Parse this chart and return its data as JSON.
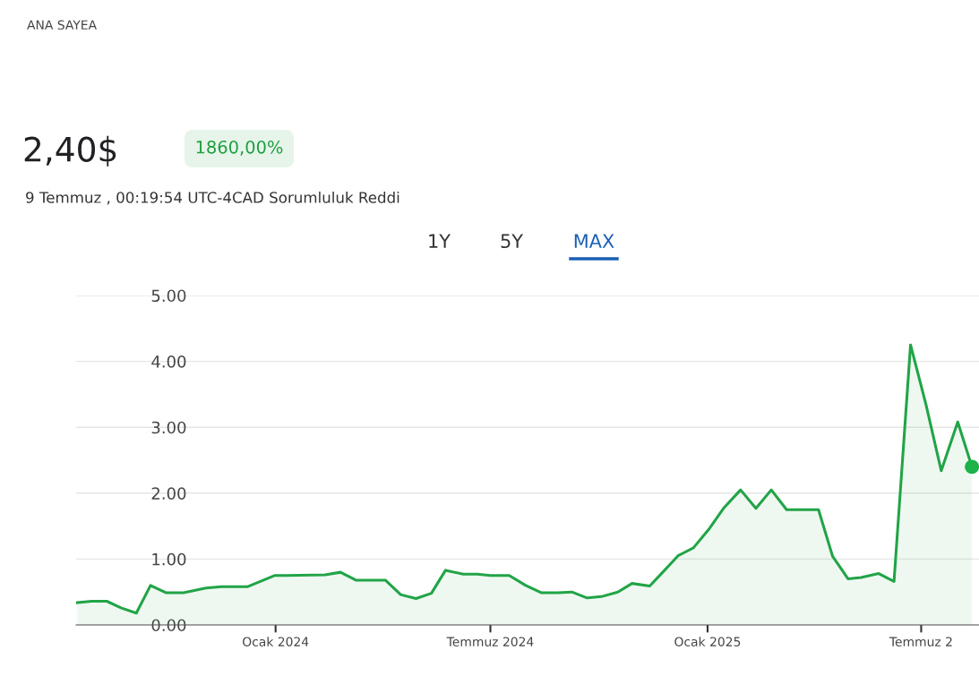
{
  "chart_data": {
    "type": "area",
    "subtitle": "9 Temmuz , 00:19:54 UTC-4CAD Sorumluluk Reddi",
    "annotations": [
      "ANA SAYEA",
      "2,40$",
      "1860,00%",
      "1Y",
      "5Y",
      "MAX"
    ],
    "xlim": [
      "2023-07-16",
      "2025-08-19"
    ],
    "xticks": [
      {
        "value": "2024-01-01",
        "label": "Ocak 2024"
      },
      {
        "value": "2024-07-01",
        "label": "Temmuz 2024"
      },
      {
        "value": "2025-01-01",
        "label": "Ocak 2025"
      },
      {
        "value": "2025-07-01",
        "label": "Temmuz 2"
      }
    ],
    "ylim": [
      0,
      5
    ],
    "yticks": [
      {
        "value": 0,
        "label": "0.00"
      },
      {
        "value": 1,
        "label": "1.00"
      },
      {
        "value": 2,
        "label": "2.00"
      },
      {
        "value": 3,
        "label": "3.00"
      },
      {
        "value": 4,
        "label": "4.00"
      },
      {
        "value": 5,
        "label": "5.00"
      }
    ],
    "grid": "y",
    "legend": false,
    "series": [
      {
        "color": "#22a447",
        "x": [
          "2023-07-17",
          "2023-07-29",
          "2023-08-11",
          "2023-08-23",
          "2023-09-05",
          "2023-09-17",
          "2023-09-30",
          "2023-10-15",
          "2023-11-03",
          "2023-11-16",
          "2023-12-08",
          "2023-12-31",
          "2024-01-10",
          "2024-02-12",
          "2024-02-25",
          "2024-03-09",
          "2024-04-03",
          "2024-04-16",
          "2024-04-29",
          "2024-05-12",
          "2024-05-24",
          "2024-06-08",
          "2024-06-20",
          "2024-07-01",
          "2024-07-17",
          "2024-07-31",
          "2024-08-13",
          "2024-08-27",
          "2024-09-08",
          "2024-09-21",
          "2024-10-03",
          "2024-10-17",
          "2024-10-29",
          "2024-11-13",
          "2024-11-24",
          "2024-12-07",
          "2024-12-20",
          "2025-01-02",
          "2025-01-15",
          "2025-01-29",
          "2025-02-11",
          "2025-02-24",
          "2025-03-09",
          "2025-04-05",
          "2025-04-17",
          "2025-04-30",
          "2025-05-11",
          "2025-05-26",
          "2025-06-08",
          "2025-06-22",
          "2025-07-05",
          "2025-07-18",
          "2025-08-01",
          "2025-08-13"
        ],
        "values": [
          0.34,
          0.36,
          0.36,
          0.26,
          0.18,
          0.6,
          0.49,
          0.49,
          0.56,
          0.58,
          0.58,
          0.75,
          0.75,
          0.76,
          0.8,
          0.68,
          0.68,
          0.46,
          0.4,
          0.48,
          0.83,
          0.77,
          0.77,
          0.75,
          0.75,
          0.6,
          0.49,
          0.49,
          0.5,
          0.41,
          0.43,
          0.5,
          0.63,
          0.59,
          0.8,
          1.05,
          1.17,
          1.45,
          1.78,
          2.05,
          1.77,
          2.05,
          1.75,
          1.75,
          1.04,
          0.7,
          0.72,
          0.78,
          0.66,
          4.25,
          3.35,
          2.34,
          3.08,
          2.4
        ]
      },
      {
        "type": "scatter",
        "color": "#1db24a",
        "x": [
          "2025-08-13"
        ],
        "values": [
          2.4
        ]
      }
    ]
  }
}
